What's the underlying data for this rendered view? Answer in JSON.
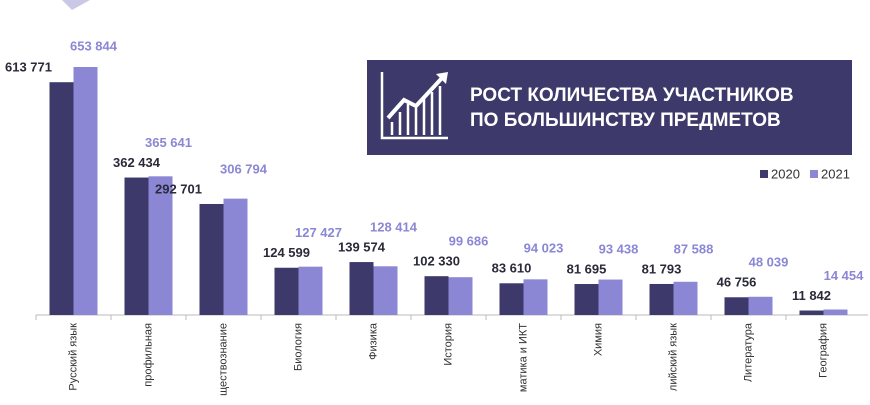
{
  "chart_data": {
    "type": "bar",
    "annotation": [
      "РОСТ КОЛИЧЕСТВА УЧАСТНИКОВ",
      "ПО БОЛЬШИНСТВУ ПРЕДМЕТОВ"
    ],
    "categories": [
      "Русский язык",
      "профильная",
      "ществознание",
      "Биология",
      "Физика",
      "История",
      "матика и ИКТ",
      "Химия",
      "лийский язык",
      "Литература",
      "География"
    ],
    "series": [
      {
        "name": "2020",
        "color": "#3d3a6b",
        "values": [
          613771,
          362434,
          292701,
          124599,
          139574,
          102330,
          83610,
          81695,
          81793,
          46756,
          11842
        ],
        "value_labels": [
          "613 771",
          "362 434",
          "292 701",
          "124 599",
          "139 574",
          "102 330",
          "83 610",
          "81 695",
          "81 793",
          "46 756",
          "11 842"
        ]
      },
      {
        "name": "2021",
        "color": "#8b87d4",
        "values": [
          653844,
          365641,
          306794,
          127427,
          128414,
          99686,
          94023,
          93438,
          87588,
          48039,
          14454
        ],
        "value_labels": [
          "653 844",
          "365 641",
          "306 794",
          "127 427",
          "128 414",
          "99 686",
          "94 023",
          "93 438",
          "87 588",
          "48 039",
          "14 454"
        ]
      }
    ],
    "ylim": [
      0,
      700000
    ],
    "legend": "upper right"
  }
}
